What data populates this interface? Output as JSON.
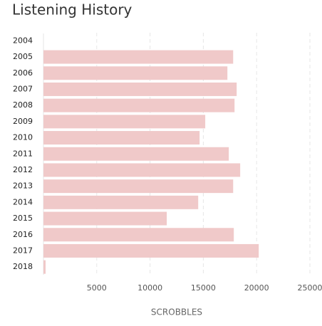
{
  "chart_data": {
    "type": "bar",
    "orientation": "horizontal",
    "title": "Listening History",
    "x_label": "SCROBBLES",
    "categories": [
      "2004",
      "2005",
      "2006",
      "2007",
      "2008",
      "2009",
      "2010",
      "2011",
      "2012",
      "2013",
      "2014",
      "2015",
      "2016",
      "2017",
      "2018"
    ],
    "values": [
      0,
      17800,
      17260,
      18130,
      17930,
      15180,
      14650,
      17390,
      18460,
      17800,
      14520,
      11570,
      17860,
      20200,
      200
    ],
    "color": "#f0c9c9",
    "xlim": [
      0,
      25000
    ],
    "xticks": [
      5000,
      10000,
      15000,
      20000,
      25000
    ],
    "grid": true
  }
}
